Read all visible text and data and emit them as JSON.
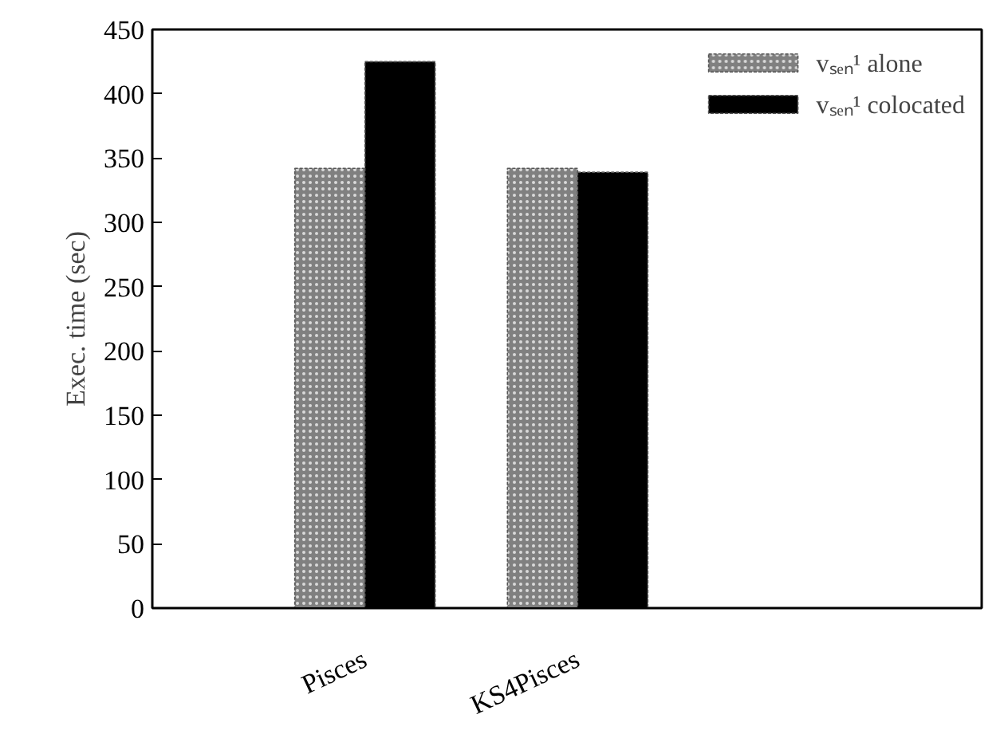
{
  "chart_data": {
    "type": "bar",
    "ylabel": "Exec. time (sec)",
    "categories": [
      "Pisces",
      "KS4Pisces"
    ],
    "series": [
      {
        "name": "vₛₑₙ¹ alone",
        "color": "#808080",
        "values": [
          342,
          342
        ]
      },
      {
        "name": "vₛₑₙ¹ colocated",
        "color": "#000000",
        "values": [
          425,
          339
        ]
      }
    ],
    "ylim": [
      0,
      450
    ],
    "yticks": [
      0,
      50,
      100,
      150,
      200,
      250,
      300,
      350,
      400,
      450
    ],
    "grid": false,
    "legend": "top right"
  }
}
